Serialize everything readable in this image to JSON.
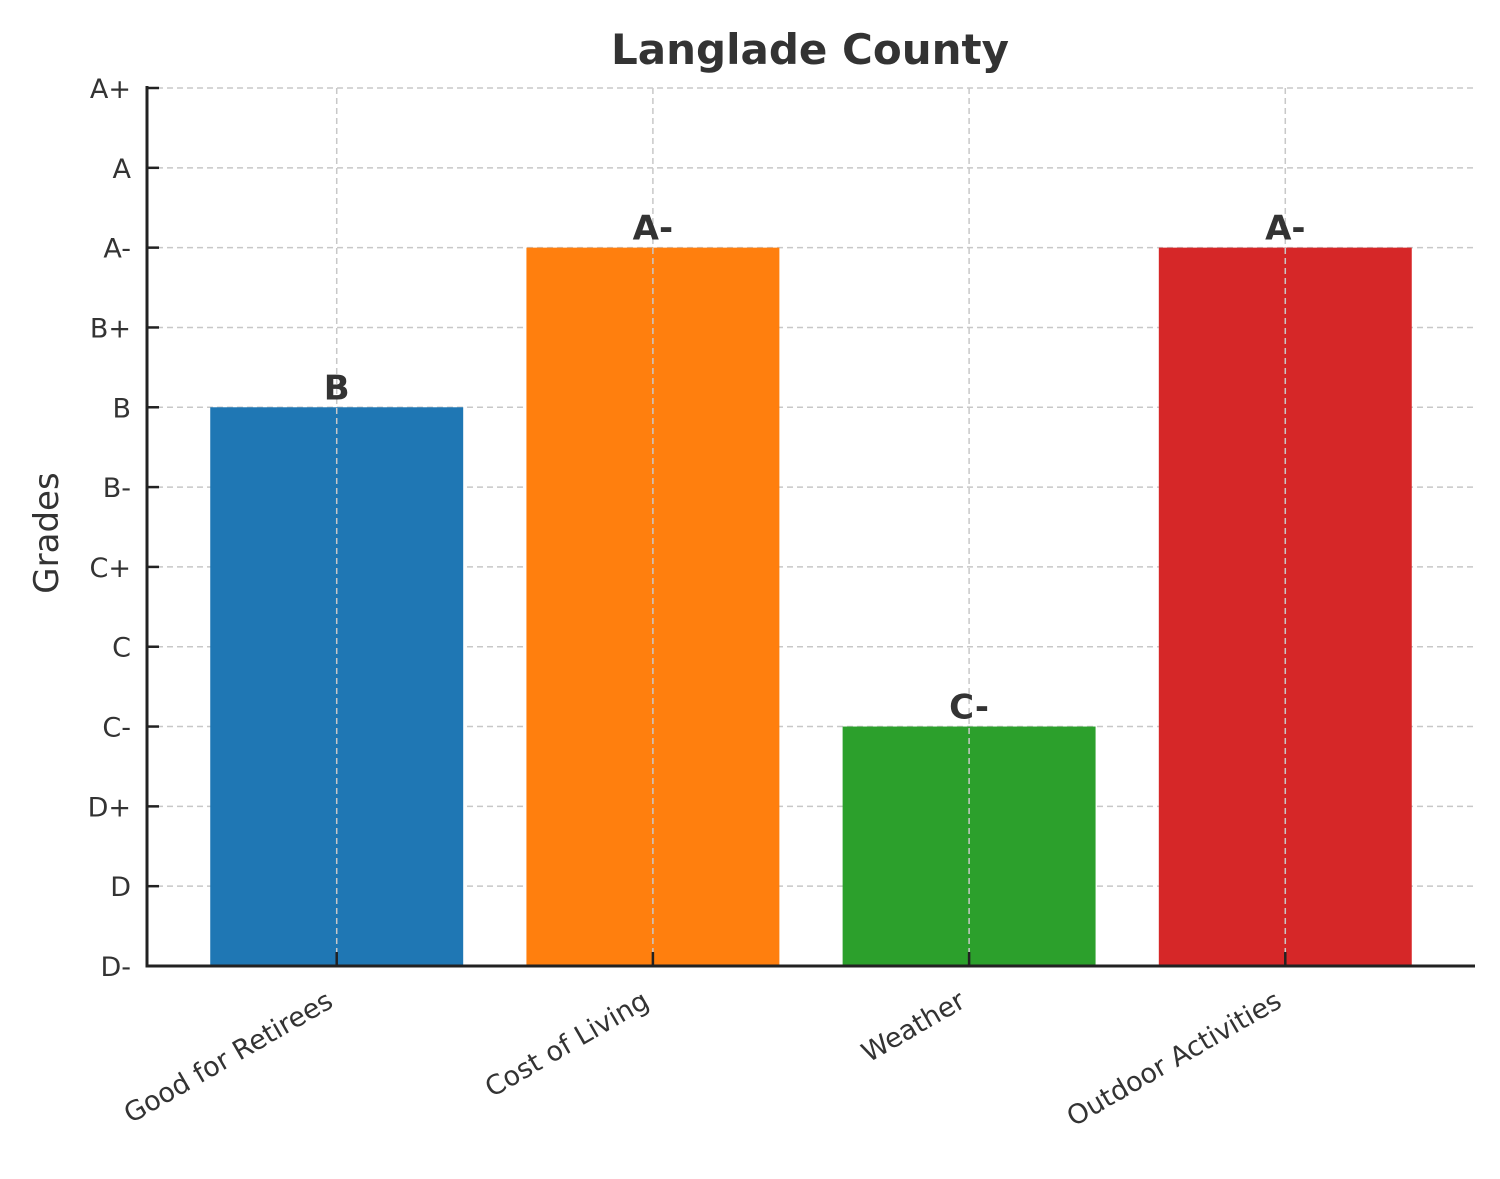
{
  "chart_data": {
    "type": "bar",
    "title": "Langlade County",
    "xlabel": "",
    "ylabel": "Grades",
    "y_scale": [
      "D-",
      "D",
      "D+",
      "C-",
      "C",
      "C+",
      "B-",
      "B",
      "B+",
      "A-",
      "A",
      "A+"
    ],
    "categories": [
      "Good for Retirees",
      "Cost of Living",
      "Weather",
      "Outdoor Activities"
    ],
    "values": [
      7,
      9,
      3,
      9
    ],
    "data_labels": [
      "B",
      "A-",
      "C-",
      "A-"
    ],
    "colors": [
      "#1f77b4",
      "#ff7f0e",
      "#2ca02c",
      "#d62728"
    ],
    "ylim": [
      0,
      11
    ],
    "grid": true
  }
}
